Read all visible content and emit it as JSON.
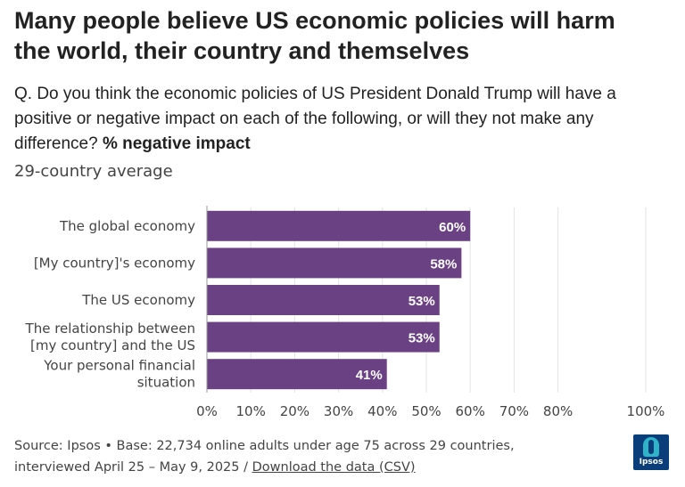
{
  "header": {
    "title_lines": [
      "Many people believe US economic policies will harm",
      "the world, their country and themselves"
    ],
    "question_lines": [
      "Q. Do you think the economic policies of US President Donald Trump will have a",
      "positive or negative impact on each of the following, or will they not make any"
    ],
    "question_last_plain": "difference? ",
    "question_bold": "% negative impact",
    "subtitle": "29-country average"
  },
  "chart_data": {
    "type": "bar",
    "orientation": "horizontal",
    "categories": [
      [
        "The global economy"
      ],
      [
        "[My country]'s economy"
      ],
      [
        "The US economy"
      ],
      [
        "The relationship between",
        "[my country] and the US"
      ],
      [
        "Your personal financial",
        "situation"
      ]
    ],
    "values": [
      60,
      58,
      53,
      53,
      41
    ],
    "value_labels": [
      "60%",
      "58%",
      "53%",
      "53%",
      "41%"
    ],
    "xlim": [
      0,
      100
    ],
    "x_ticks": [
      0,
      10,
      20,
      30,
      40,
      50,
      60,
      70,
      80,
      100
    ],
    "x_tick_labels": [
      "0%",
      "10%",
      "20%",
      "30%",
      "40%",
      "50%",
      "60%",
      "70%",
      "80%",
      "100%"
    ],
    "grid": true,
    "bar_color": "#6a4283"
  },
  "footer": {
    "source_line": "Source: Ipsos • Base: 22,734 online adults under age 75 across 29 countries,",
    "date_text": "interviewed April 25 – May 9, 2025 / ",
    "download_link": "Download the data (CSV)"
  },
  "logo": {
    "text": "Ipsos"
  }
}
